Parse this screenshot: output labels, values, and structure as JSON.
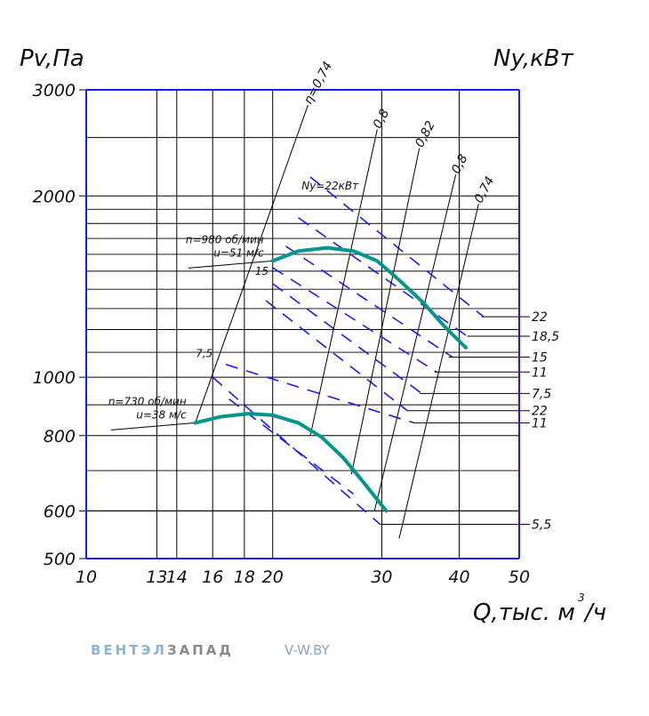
{
  "chart_data": {
    "type": "line",
    "y_title": "Pv,Па",
    "y2_title": "Ny,кВт",
    "x_title": "Q,тыс. м",
    "x_title_sup": "3",
    "x_title_tail": "/ч",
    "x_scale": "log",
    "y_scale": "log",
    "x_ticks": [
      "10",
      "13",
      "14",
      "16",
      "18",
      "20",
      "30",
      "40",
      "50"
    ],
    "x_tick_values": [
      10,
      13,
      14,
      16,
      18,
      20,
      30,
      40,
      50
    ],
    "y_ticks": [
      "3000",
      "2000",
      "1000",
      "800",
      "600",
      "500"
    ],
    "y_tick_values": [
      3000,
      2000,
      1000,
      800,
      600,
      500
    ],
    "xlim": [
      10,
      50
    ],
    "ylim": [
      500,
      3000
    ],
    "series": [
      {
        "label": "n=980 об/мин",
        "label2": "u=51 м/с",
        "x": [
          20.0,
          22.0,
          24.5,
          27.0,
          29.5,
          32.0,
          35.0,
          38.0,
          41.0
        ],
        "y": [
          1560,
          1620,
          1640,
          1620,
          1560,
          1450,
          1330,
          1210,
          1120
        ]
      },
      {
        "label": "n=730 об/мин",
        "label2": "u=38 м/с",
        "x": [
          15.0,
          16.5,
          18.3,
          20.0,
          22.0,
          24.0,
          26.0,
          28.0,
          30.5
        ],
        "y": [
          840,
          860,
          870,
          865,
          840,
          795,
          735,
          670,
          600
        ]
      }
    ],
    "efficiency_labels": [
      "η=0,74",
      "0,8",
      "0,82",
      "0,8",
      "0,74"
    ],
    "efficiency_rays": [
      {
        "x0": 15.0,
        "y0": 840,
        "x1": 22.8,
        "y1": 2830
      },
      {
        "x0": 23.0,
        "y0": 800,
        "x1": 29.5,
        "y1": 2580
      },
      {
        "x0": 26.8,
        "y0": 690,
        "x1": 34.5,
        "y1": 2400
      },
      {
        "x0": 29.2,
        "y0": 600,
        "x1": 39.5,
        "y1": 2170
      },
      {
        "x0": 32.0,
        "y0": 540,
        "x1": 43.0,
        "y1": 1940
      }
    ],
    "power_right_labels": [
      "22",
      "18,5",
      "15",
      "11",
      "7,5",
      "22",
      "11",
      "5,5"
    ],
    "power_right_y": [
      1260,
      1170,
      1080,
      1020,
      940,
      880,
      840,
      570
    ],
    "power_right_x": [
      43.5,
      41.2,
      38.5,
      36.5,
      34.5,
      33.0,
      33.8,
      29.8
    ],
    "power_inline_labels": [
      "Ny=22кВт",
      "15",
      "7,5"
    ],
    "power_inline_points": [
      {
        "x": 27.5,
        "y": 2050
      },
      {
        "x": 19.7,
        "y": 1480
      },
      {
        "x": 16.0,
        "y": 1080
      }
    ],
    "power_lines": [
      {
        "x0": 23.0,
        "y0": 2150,
        "x1": 43.8,
        "y1": 1260
      },
      {
        "x0": 22.0,
        "y0": 1840,
        "x1": 41.2,
        "y1": 1170
      },
      {
        "x0": 21.0,
        "y0": 1650,
        "x1": 39.0,
        "y1": 1080
      },
      {
        "x0": 20.0,
        "y0": 1520,
        "x1": 36.8,
        "y1": 1020
      },
      {
        "x0": 20.0,
        "y0": 1430,
        "x1": 34.8,
        "y1": 940
      },
      {
        "x0": 19.5,
        "y0": 1340,
        "x1": 33.0,
        "y1": 880
      },
      {
        "x0": 16.8,
        "y0": 1050,
        "x1": 33.8,
        "y1": 840
      },
      {
        "x0": 16.0,
        "y0": 1000,
        "x1": 29.8,
        "y1": 570
      },
      {
        "x0": 17.0,
        "y0": 920,
        "x1": 27.0,
        "y1": 640
      }
    ]
  },
  "footer": {
    "brand_a": "ВЕНТЭЛ",
    "brand_b": "ЗАПАД",
    "site": "V-W.BY"
  },
  "colors": {
    "axis": "#1a1aff",
    "curve": "#00968c",
    "dash": "#1a1aff",
    "grid": "#000000"
  }
}
